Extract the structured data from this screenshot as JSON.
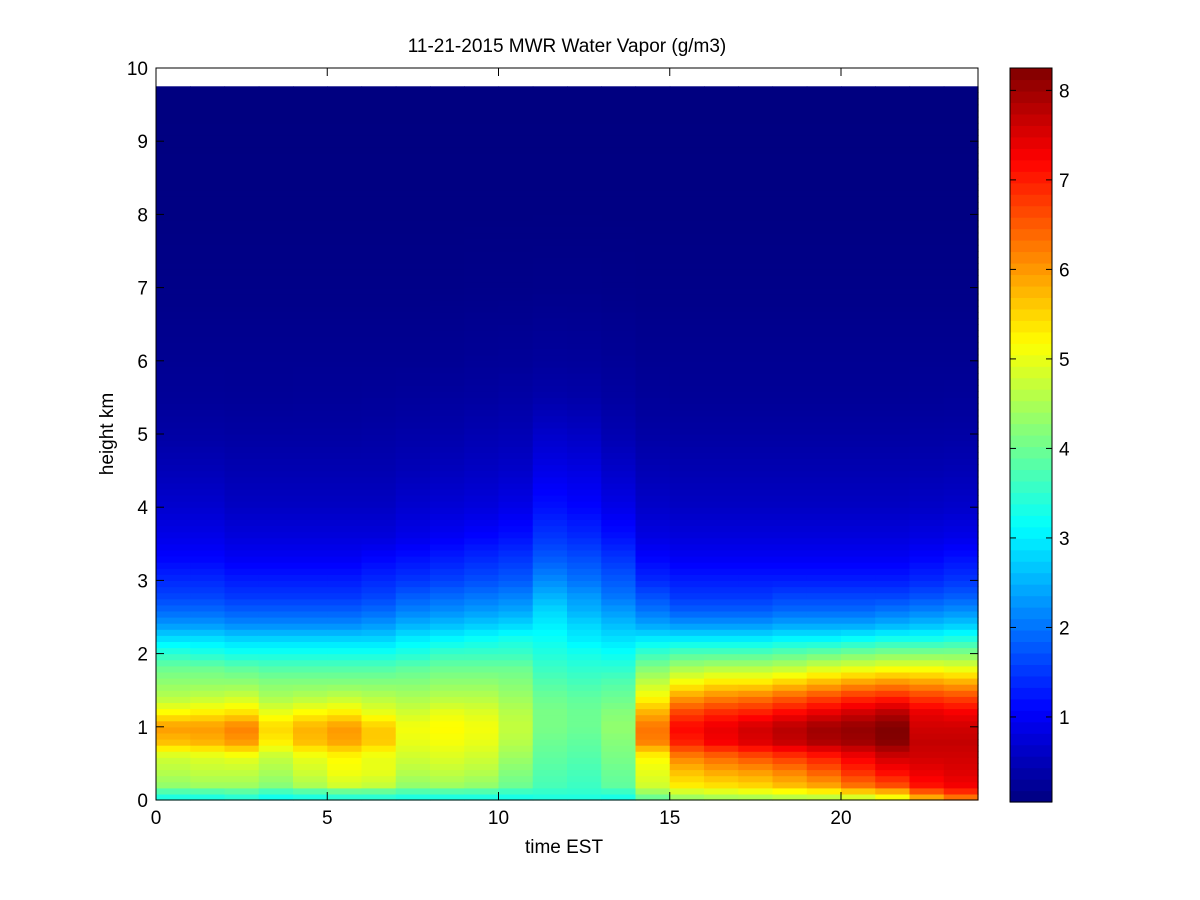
{
  "chart_data": {
    "type": "heatmap",
    "title": "11-21-2015 MWR Water Vapor (g/m3)",
    "xlabel": "time EST",
    "ylabel": "height km",
    "xlim": [
      0,
      24
    ],
    "ylim": [
      0,
      10
    ],
    "xticks": [
      "0",
      "5",
      "10",
      "15",
      "20"
    ],
    "yticks": [
      "0",
      "1",
      "2",
      "3",
      "4",
      "5",
      "6",
      "7",
      "8",
      "9",
      "10"
    ],
    "colorbar": {
      "colormap": "jet",
      "range": [
        0.05,
        8.25
      ],
      "ticks": [
        "1",
        "2",
        "3",
        "4",
        "5",
        "6",
        "7",
        "8"
      ]
    },
    "x": [
      0,
      1,
      2,
      3,
      4,
      5,
      6,
      7,
      8,
      9,
      10,
      11,
      12,
      13,
      14,
      15,
      16,
      17,
      18,
      19,
      20,
      21,
      22,
      23
    ],
    "y_top_km": 9.75,
    "profile_heights_km": [
      0,
      0.1,
      0.2,
      0.4,
      0.6,
      0.8,
      1.0,
      1.2,
      1.4,
      1.6,
      1.8,
      2.0,
      2.2,
      2.4,
      2.6,
      2.8,
      3.0,
      3.3,
      3.6,
      4.0,
      4.5,
      5.0,
      5.5,
      6.0,
      7.0,
      8.0,
      9.75
    ],
    "notes": "Each time column is a vertical water-vapor profile in g/m3 sampled at profile_heights_km.",
    "z": [
      [
        3.2,
        3.6,
        4.3,
        4.6,
        4.8,
        5.7,
        6.0,
        5.2,
        4.6,
        4.3,
        4.0,
        3.5,
        2.9,
        2.3,
        1.9,
        1.6,
        1.4,
        1.1,
        0.9,
        0.7,
        0.5,
        0.35,
        0.25,
        0.2,
        0.12,
        0.08,
        0.05
      ],
      [
        3.2,
        3.6,
        4.4,
        4.7,
        4.9,
        5.8,
        6.0,
        5.3,
        4.7,
        4.3,
        4.0,
        3.4,
        2.9,
        2.3,
        1.9,
        1.6,
        1.4,
        1.1,
        0.9,
        0.7,
        0.5,
        0.35,
        0.25,
        0.2,
        0.12,
        0.08,
        0.05
      ],
      [
        3.3,
        3.7,
        4.4,
        4.7,
        5.0,
        6.0,
        6.2,
        5.4,
        4.8,
        4.3,
        3.9,
        3.3,
        2.8,
        2.2,
        1.8,
        1.5,
        1.3,
        1.0,
        0.8,
        0.6,
        0.45,
        0.33,
        0.24,
        0.2,
        0.12,
        0.08,
        0.05
      ],
      [
        3.1,
        3.5,
        4.2,
        4.5,
        4.7,
        5.3,
        5.5,
        5.0,
        4.5,
        4.2,
        3.8,
        3.3,
        2.8,
        2.2,
        1.8,
        1.5,
        1.3,
        1.0,
        0.8,
        0.6,
        0.45,
        0.33,
        0.24,
        0.2,
        0.12,
        0.08,
        0.05
      ],
      [
        3.2,
        3.6,
        4.5,
        4.8,
        5.0,
        5.7,
        5.8,
        5.2,
        4.6,
        4.2,
        3.8,
        3.3,
        2.8,
        2.2,
        1.8,
        1.5,
        1.3,
        1.0,
        0.8,
        0.6,
        0.45,
        0.33,
        0.25,
        0.2,
        0.12,
        0.08,
        0.05
      ],
      [
        3.3,
        3.7,
        4.8,
        5.1,
        5.2,
        5.9,
        6.0,
        5.3,
        4.7,
        4.2,
        3.8,
        3.3,
        2.8,
        2.2,
        1.8,
        1.5,
        1.3,
        1.0,
        0.8,
        0.6,
        0.45,
        0.33,
        0.25,
        0.2,
        0.12,
        0.08,
        0.05
      ],
      [
        3.3,
        3.7,
        4.7,
        5.0,
        5.0,
        5.6,
        5.6,
        5.0,
        4.6,
        4.2,
        3.8,
        3.3,
        2.8,
        2.3,
        1.9,
        1.6,
        1.4,
        1.1,
        0.8,
        0.6,
        0.45,
        0.35,
        0.26,
        0.2,
        0.12,
        0.08,
        0.05
      ],
      [
        3.2,
        3.6,
        4.3,
        4.6,
        4.8,
        5.0,
        5.1,
        4.8,
        4.5,
        4.2,
        3.9,
        3.4,
        3.0,
        2.5,
        2.1,
        1.8,
        1.5,
        1.2,
        0.9,
        0.7,
        0.5,
        0.38,
        0.28,
        0.2,
        0.12,
        0.08,
        0.05
      ],
      [
        3.2,
        3.6,
        4.4,
        4.7,
        4.9,
        5.1,
        5.2,
        5.0,
        4.6,
        4.3,
        4.0,
        3.6,
        3.1,
        2.6,
        2.2,
        1.9,
        1.6,
        1.3,
        1.0,
        0.75,
        0.55,
        0.4,
        0.3,
        0.22,
        0.12,
        0.08,
        0.05
      ],
      [
        3.2,
        3.6,
        4.3,
        4.6,
        4.8,
        5.0,
        5.1,
        4.9,
        4.6,
        4.3,
        4.0,
        3.6,
        3.2,
        2.7,
        2.3,
        2.0,
        1.7,
        1.4,
        1.1,
        0.8,
        0.6,
        0.45,
        0.32,
        0.24,
        0.13,
        0.08,
        0.05
      ],
      [
        3.2,
        3.5,
        4.0,
        4.2,
        4.4,
        4.6,
        4.7,
        4.6,
        4.4,
        4.2,
        4.0,
        3.6,
        3.3,
        2.8,
        2.4,
        2.1,
        1.8,
        1.5,
        1.2,
        0.9,
        0.65,
        0.48,
        0.35,
        0.25,
        0.13,
        0.08,
        0.05
      ],
      [
        3.3,
        3.5,
        3.7,
        3.8,
        3.9,
        4.0,
        4.1,
        4.1,
        4.0,
        3.8,
        3.6,
        3.4,
        3.2,
        3.0,
        2.8,
        2.5,
        2.2,
        1.8,
        1.5,
        1.2,
        0.9,
        0.65,
        0.4,
        0.28,
        0.14,
        0.08,
        0.05
      ],
      [
        3.3,
        3.5,
        3.6,
        3.7,
        3.8,
        3.9,
        4.0,
        4.0,
        3.9,
        3.7,
        3.5,
        3.3,
        3.0,
        2.8,
        2.5,
        2.3,
        2.0,
        1.7,
        1.4,
        1.1,
        0.85,
        0.6,
        0.38,
        0.27,
        0.14,
        0.08,
        0.05
      ],
      [
        3.2,
        3.5,
        3.9,
        4.0,
        4.1,
        4.2,
        4.3,
        4.2,
        4.0,
        3.8,
        3.5,
        3.2,
        2.9,
        2.6,
        2.3,
        2.0,
        1.8,
        1.5,
        1.2,
        0.9,
        0.65,
        0.45,
        0.32,
        0.24,
        0.13,
        0.08,
        0.05
      ],
      [
        3.8,
        4.3,
        4.8,
        5.0,
        5.2,
        6.2,
        6.3,
        5.8,
        5.2,
        4.7,
        4.2,
        3.6,
        3.0,
        2.4,
        2.0,
        1.7,
        1.4,
        1.1,
        0.85,
        0.65,
        0.48,
        0.35,
        0.26,
        0.2,
        0.12,
        0.08,
        0.05
      ],
      [
        4.2,
        4.7,
        5.3,
        5.7,
        6.2,
        7.0,
        7.2,
        6.7,
        6.0,
        5.2,
        4.5,
        3.8,
        3.0,
        2.3,
        1.8,
        1.5,
        1.3,
        1.0,
        0.8,
        0.6,
        0.45,
        0.33,
        0.24,
        0.2,
        0.12,
        0.08,
        0.05
      ],
      [
        4.3,
        4.8,
        5.4,
        5.9,
        6.4,
        7.3,
        7.4,
        6.9,
        6.2,
        5.4,
        4.6,
        3.8,
        3.0,
        2.3,
        1.8,
        1.5,
        1.3,
        1.0,
        0.8,
        0.6,
        0.45,
        0.33,
        0.24,
        0.2,
        0.12,
        0.08,
        0.05
      ],
      [
        4.3,
        4.9,
        5.5,
        6.0,
        6.6,
        7.5,
        7.6,
        7.0,
        6.3,
        5.4,
        4.6,
        3.8,
        3.0,
        2.3,
        1.8,
        1.5,
        1.3,
        1.0,
        0.8,
        0.6,
        0.45,
        0.33,
        0.24,
        0.2,
        0.12,
        0.08,
        0.05
      ],
      [
        4.4,
        5.0,
        5.7,
        6.2,
        6.8,
        7.7,
        7.8,
        7.2,
        6.5,
        5.6,
        4.7,
        3.9,
        3.1,
        2.4,
        1.9,
        1.6,
        1.3,
        1.0,
        0.8,
        0.6,
        0.45,
        0.33,
        0.24,
        0.2,
        0.12,
        0.08,
        0.05
      ],
      [
        4.4,
        5.1,
        5.9,
        6.5,
        7.0,
        7.9,
        8.0,
        7.4,
        6.7,
        5.8,
        4.9,
        4.0,
        3.1,
        2.4,
        1.9,
        1.6,
        1.3,
        1.0,
        0.8,
        0.6,
        0.45,
        0.33,
        0.24,
        0.2,
        0.12,
        0.08,
        0.05
      ],
      [
        4.5,
        5.4,
        6.3,
        6.9,
        7.3,
        8.0,
        8.1,
        7.6,
        6.9,
        6.0,
        5.0,
        4.1,
        3.2,
        2.4,
        1.9,
        1.6,
        1.3,
        1.0,
        0.8,
        0.6,
        0.45,
        0.33,
        0.24,
        0.2,
        0.12,
        0.08,
        0.05
      ],
      [
        4.8,
        5.6,
        6.6,
        7.2,
        7.6,
        8.2,
        8.25,
        7.8,
        7.0,
        6.1,
        5.1,
        4.2,
        3.3,
        2.5,
        2.0,
        1.6,
        1.3,
        1.0,
        0.8,
        0.6,
        0.45,
        0.33,
        0.24,
        0.2,
        0.12,
        0.08,
        0.05
      ],
      [
        5.5,
        6.4,
        7.1,
        7.4,
        7.6,
        7.7,
        7.6,
        7.4,
        6.8,
        6.0,
        5.1,
        4.2,
        3.3,
        2.6,
        2.1,
        1.7,
        1.4,
        1.1,
        0.85,
        0.63,
        0.46,
        0.34,
        0.25,
        0.2,
        0.12,
        0.08,
        0.05
      ],
      [
        6.0,
        6.8,
        7.3,
        7.5,
        7.6,
        7.7,
        7.6,
        7.3,
        6.7,
        5.9,
        5.0,
        4.2,
        3.4,
        2.7,
        2.2,
        1.8,
        1.5,
        1.2,
        0.9,
        0.66,
        0.48,
        0.35,
        0.26,
        0.2,
        0.12,
        0.08,
        0.05
      ]
    ]
  }
}
